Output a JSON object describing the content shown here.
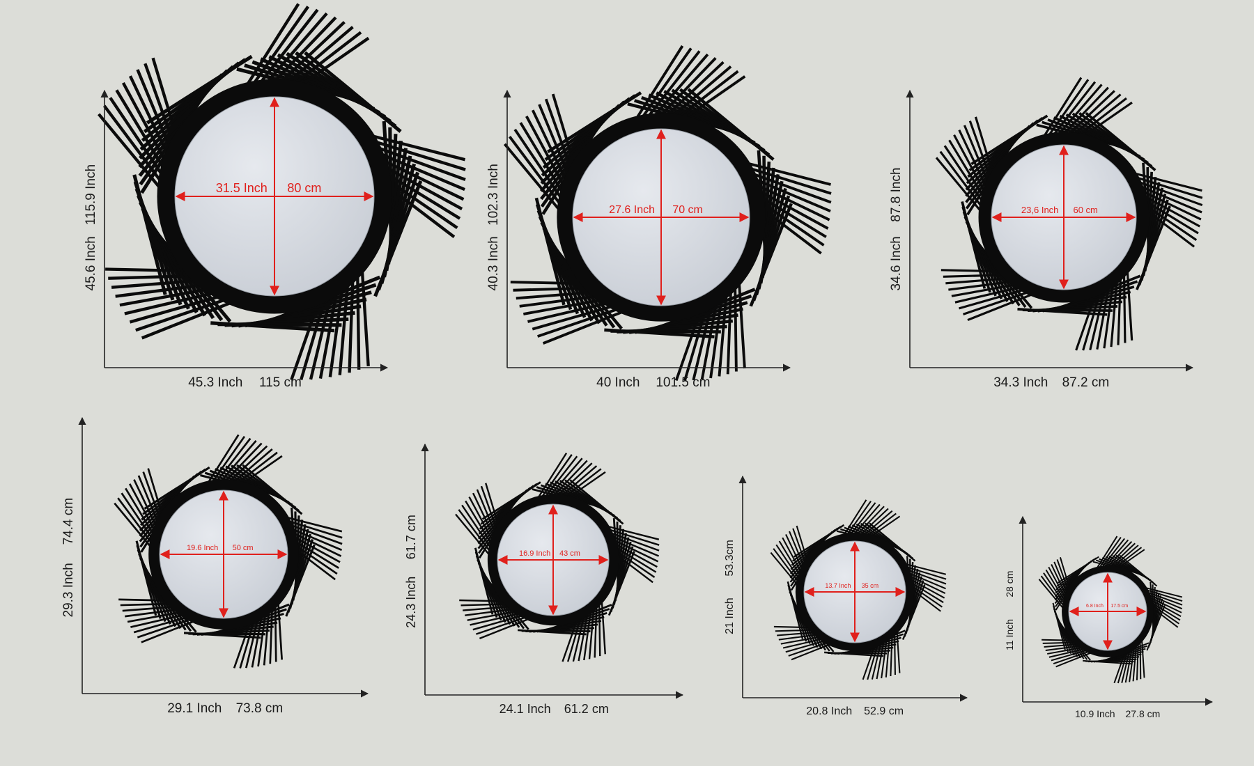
{
  "colors": {
    "background": "#dcddd8",
    "frame": "#0b0b0b",
    "mirror": "#d3d8df",
    "measure_red": "#e0201c",
    "dimension_line": "#222222"
  },
  "mirrors": [
    {
      "inner_inch": "31.5 Inch",
      "inner_cm": "80 cm",
      "width_inch": "45.3 Inch",
      "width_cm": "115 cm",
      "height_inch": "45.6 Inch",
      "height_cm": "115.9 Inch"
    },
    {
      "inner_inch": "27.6 Inch",
      "inner_cm": "70 cm",
      "width_inch": "40 Inch",
      "width_cm": "101.5 cm",
      "height_inch": "40.3 Inch",
      "height_cm": "102.3 Inch"
    },
    {
      "inner_inch": "23,6 Inch",
      "inner_cm": "60 cm",
      "width_inch": "34.3 Inch",
      "width_cm": "87.2 cm",
      "height_inch": "34.6 Inch",
      "height_cm": "87.8 Inch"
    },
    {
      "inner_inch": "19.6 Inch",
      "inner_cm": "50 cm",
      "width_inch": "29.1 Inch",
      "width_cm": "73.8 cm",
      "height_inch": "29.3 Inch",
      "height_cm": "74.4 cm"
    },
    {
      "inner_inch": "16.9 Inch",
      "inner_cm": "43 cm",
      "width_inch": "24.1 Inch",
      "width_cm": "61.2 cm",
      "height_inch": "24.3 Inch",
      "height_cm": "61.7 cm"
    },
    {
      "inner_inch": "13.7 Inch",
      "inner_cm": "35 cm",
      "width_inch": "20.8 Inch",
      "width_cm": "52.9 cm",
      "height_inch": "21 Inch",
      "height_cm": "53.3cm"
    },
    {
      "inner_inch": "6.8 Inch",
      "inner_cm": "17.5 cm",
      "width_inch": "10.9 Inch",
      "width_cm": "27.8 cm",
      "height_inch": "11 Inch",
      "height_cm": "28 cm"
    }
  ]
}
